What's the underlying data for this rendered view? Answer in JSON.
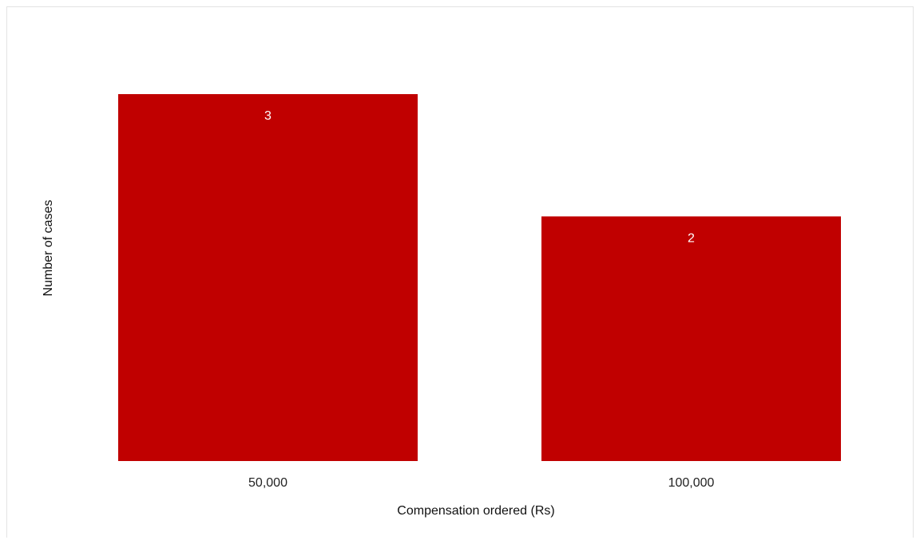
{
  "chart_data": {
    "type": "bar",
    "categories": [
      "50,000",
      "100,000"
    ],
    "values": [
      3,
      2
    ],
    "data_labels": [
      "3",
      "2"
    ],
    "title": "",
    "xlabel": "Compensation ordered (Rs)",
    "ylabel": "Number of cases",
    "ylim": [
      0,
      3
    ],
    "grid": false,
    "bar_color": "#c00000",
    "label_color": "#ffffff"
  }
}
